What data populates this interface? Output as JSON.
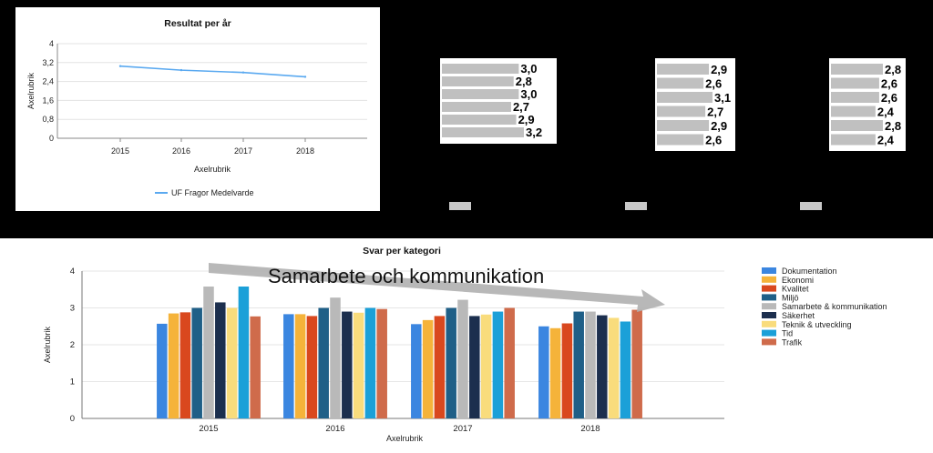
{
  "colors": {
    "background_top": "#000000",
    "line_series": "#5aa9f0",
    "bar_grey": "#c0c0c0",
    "arrow": "#b0b0b0"
  },
  "chart_data": [
    {
      "type": "line",
      "title": "Resultat per år",
      "xlabel": "Axelrubrik",
      "ylabel": "Axelrubrik",
      "categories": [
        "2015",
        "2016",
        "2017",
        "2018"
      ],
      "y_ticks": [
        "0",
        "0,8",
        "1,6",
        "2,4",
        "3,2",
        "4"
      ],
      "ylim": [
        0,
        4
      ],
      "grid": true,
      "legend_position": "bottom",
      "series": [
        {
          "name": "UF Fragor Medelvarde",
          "values": [
            3.05,
            2.88,
            2.78,
            2.6
          ],
          "color": "#5aa9f0"
        }
      ]
    },
    {
      "type": "bar",
      "orientation": "horizontal",
      "values": [
        3.0,
        2.8,
        3.0,
        2.7,
        2.9,
        3.2
      ],
      "labels": [
        "3,0",
        "2,8",
        "3,0",
        "2,7",
        "2,9",
        "3,2"
      ]
    },
    {
      "type": "bar",
      "orientation": "horizontal",
      "values": [
        2.9,
        2.6,
        3.1,
        2.7,
        2.9,
        2.6
      ],
      "labels": [
        "2,9",
        "2,6",
        "3,1",
        "2,7",
        "2,9",
        "2,6"
      ]
    },
    {
      "type": "bar",
      "orientation": "horizontal",
      "values": [
        2.8,
        2.6,
        2.6,
        2.4,
        2.8,
        2.4
      ],
      "labels": [
        "2,8",
        "2,6",
        "2,6",
        "2,4",
        "2,8",
        "2,4"
      ]
    },
    {
      "type": "bar",
      "title": "Svar per kategori",
      "xlabel": "Axelrubrik",
      "ylabel": "Axelrubrik",
      "categories": [
        "2015",
        "2016",
        "2017",
        "2018"
      ],
      "y_ticks": [
        "0",
        "1",
        "2",
        "3",
        "4"
      ],
      "ylim": [
        0,
        4
      ],
      "grid": true,
      "legend_position": "right",
      "annotation": "Samarbete och kommunikation",
      "series": [
        {
          "name": "Dokumentation",
          "color": "#3b86e0",
          "values": [
            2.57,
            2.83,
            2.56,
            2.5
          ]
        },
        {
          "name": "Ekonomi",
          "color": "#f5b33a",
          "values": [
            2.85,
            2.83,
            2.67,
            2.45
          ]
        },
        {
          "name": "Kvalitet",
          "color": "#d9481e",
          "values": [
            2.88,
            2.78,
            2.78,
            2.58
          ]
        },
        {
          "name": "Miljö",
          "color": "#1f5f87",
          "values": [
            3.0,
            3.0,
            3.0,
            2.9
          ]
        },
        {
          "name": "Samarbete & kommunikation",
          "color": "#b9b9b9",
          "values": [
            3.58,
            3.28,
            3.22,
            2.9
          ]
        },
        {
          "name": "Säkerhet",
          "color": "#1c2f4e",
          "values": [
            3.15,
            2.9,
            2.78,
            2.8
          ]
        },
        {
          "name": "Teknik & utveckling",
          "color": "#f9dc7c",
          "values": [
            3.0,
            2.87,
            2.82,
            2.73
          ]
        },
        {
          "name": "Tid",
          "color": "#1ba0d8",
          "values": [
            3.58,
            3.0,
            2.9,
            2.63
          ]
        },
        {
          "name": "Trafik",
          "color": "#cf6b4b",
          "values": [
            2.77,
            2.97,
            3.0,
            2.95
          ]
        }
      ]
    }
  ]
}
